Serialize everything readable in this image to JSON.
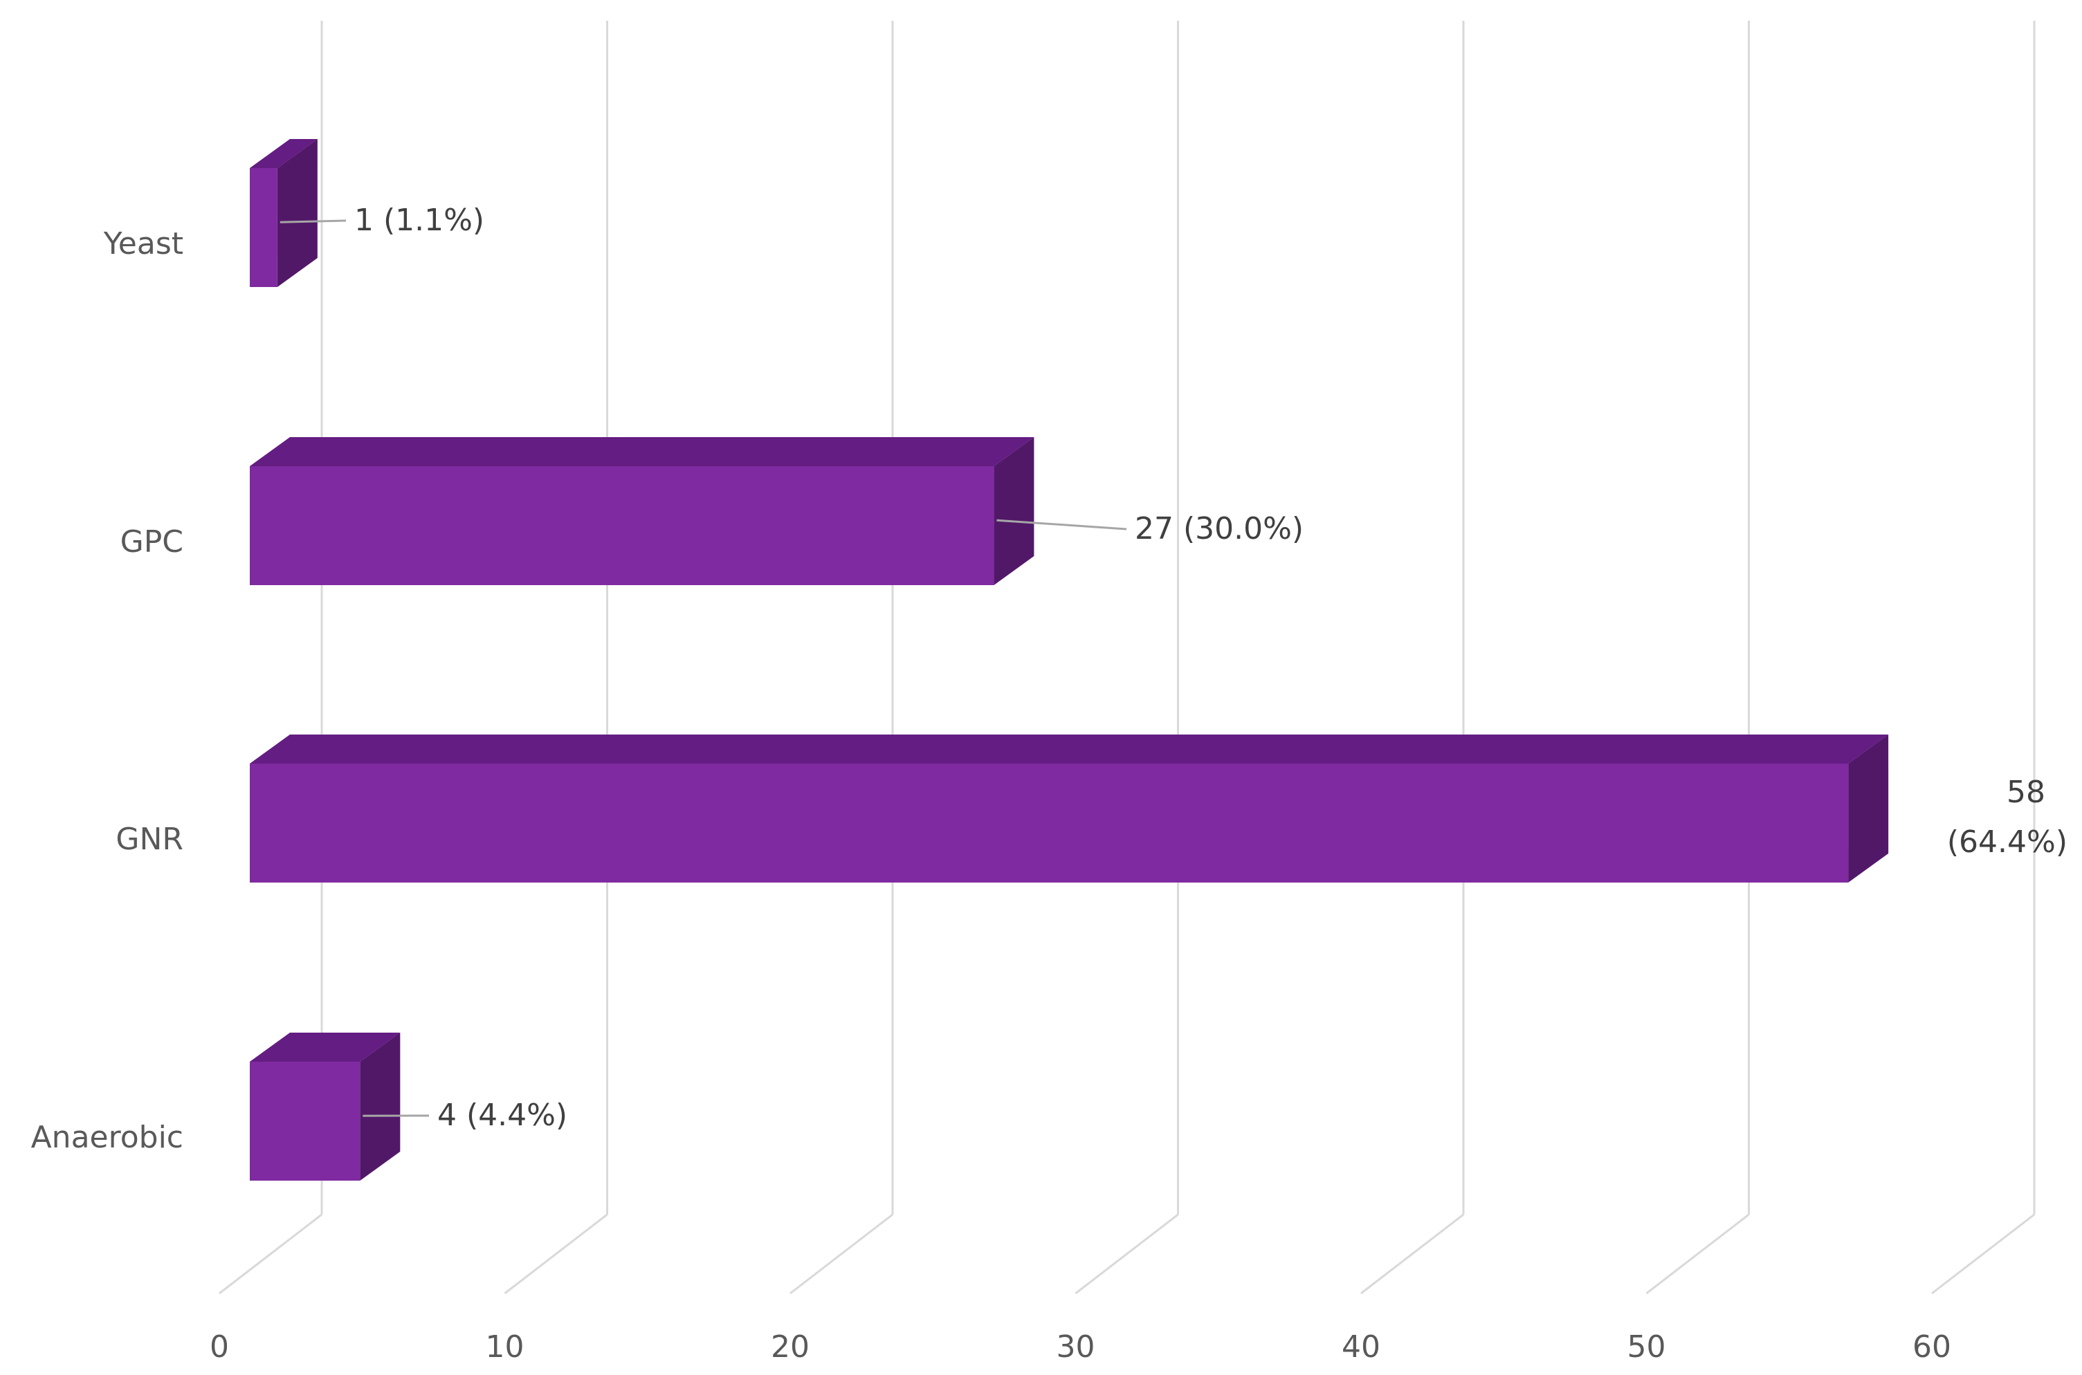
{
  "chart_data": {
    "type": "bar",
    "orientation": "horizontal",
    "three_d": true,
    "categories": [
      "Yeast",
      "GPC",
      "GNR",
      "Anaerobic"
    ],
    "values": [
      1,
      27,
      58,
      4
    ],
    "data_labels": [
      "1 (1.1%)",
      "27 (30.0%)",
      "58 (64.4%)",
      "4 (4.4%)"
    ],
    "x_ticks": [
      "0",
      "10",
      "20",
      "30",
      "40",
      "50",
      "60"
    ],
    "xlim": [
      0,
      60
    ],
    "grid": true,
    "legend": "none"
  },
  "colors": {
    "bar_front": "#7f2aa0",
    "bar_top": "#641d82",
    "bar_side": "#521868",
    "gridline": "#d9d9d9",
    "leader": "#a6a6a6"
  }
}
